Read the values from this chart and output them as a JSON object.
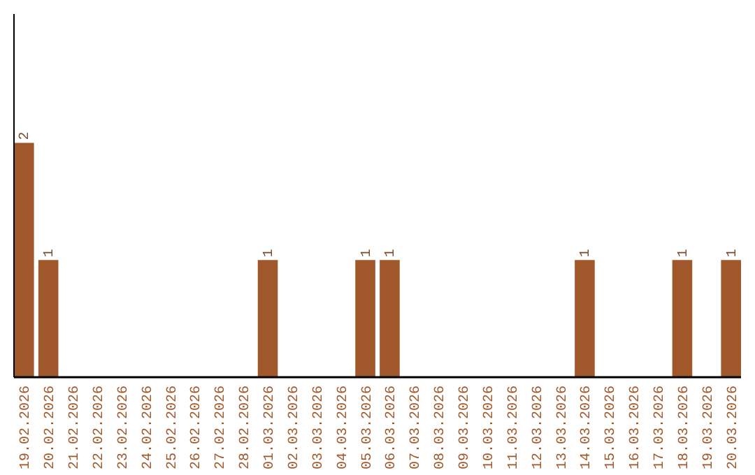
{
  "chart_data": {
    "type": "bar",
    "categories": [
      "19.02.2026",
      "20.02.2026",
      "21.02.2026",
      "22.02.2026",
      "23.02.2026",
      "24.02.2026",
      "25.02.2026",
      "26.02.2026",
      "27.02.2026",
      "28.02.2026",
      "01.03.2026",
      "02.03.2026",
      "03.03.2026",
      "04.03.2026",
      "05.03.2026",
      "06.03.2026",
      "07.03.2026",
      "08.03.2026",
      "09.03.2026",
      "10.03.2026",
      "11.03.2026",
      "12.03.2026",
      "13.03.2026",
      "14.03.2026",
      "15.03.2026",
      "16.03.2026",
      "17.03.2026",
      "18.03.2026",
      "19.03.2026",
      "20.03.2026"
    ],
    "values": [
      2,
      1,
      0,
      0,
      0,
      0,
      0,
      0,
      0,
      0,
      1,
      0,
      0,
      0,
      1,
      1,
      0,
      0,
      0,
      0,
      0,
      0,
      0,
      1,
      0,
      0,
      0,
      1,
      0,
      1
    ],
    "value_labels": [
      "2",
      "1",
      null,
      null,
      null,
      null,
      null,
      null,
      null,
      null,
      "1",
      null,
      null,
      null,
      "1",
      "1",
      null,
      null,
      null,
      null,
      null,
      null,
      null,
      "1",
      null,
      null,
      null,
      "1",
      null,
      "1"
    ],
    "color": "#a0582a",
    "ylim": [
      0,
      3.1
    ],
    "grid": false
  }
}
